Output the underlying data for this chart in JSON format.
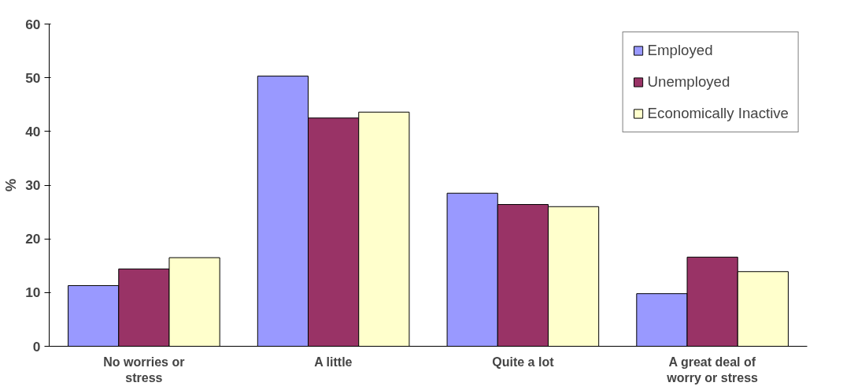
{
  "chart_data": {
    "type": "bar",
    "ylabel": "%",
    "categories": [
      "No worries or stress",
      "A little",
      "Quite a lot",
      "A great deal of worry or stress"
    ],
    "series": [
      {
        "name": "Employed",
        "color": "#9999ff",
        "values": [
          11.3,
          50.3,
          28.5,
          9.8
        ]
      },
      {
        "name": "Unemployed",
        "color": "#993366",
        "values": [
          14.4,
          42.5,
          26.4,
          16.6
        ]
      },
      {
        "name": "Economically Inactive",
        "color": "#ffffcc",
        "values": [
          16.5,
          43.6,
          26.0,
          13.9
        ]
      }
    ],
    "ylim": [
      0,
      60
    ],
    "yticks": [
      0,
      10,
      20,
      30,
      40,
      50,
      60
    ],
    "grid": false,
    "legend": "top right"
  }
}
